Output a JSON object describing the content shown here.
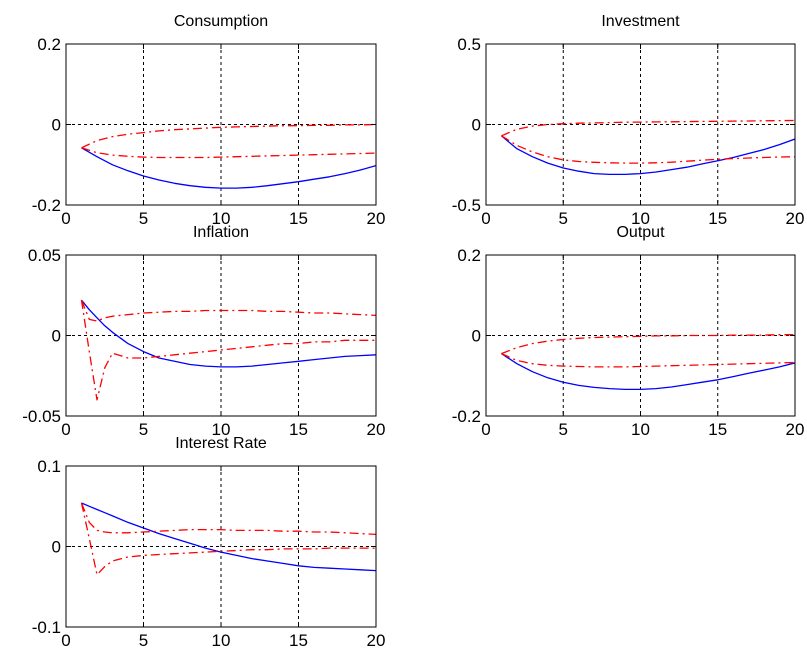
{
  "colors": {
    "background": "#ffffff",
    "axes": "#000000",
    "grid": "#000000",
    "response_line": "#0000ff",
    "band_lines": "#ff0000"
  },
  "chart_data": [
    {
      "type": "line",
      "title": "Consumption",
      "xlim": [
        0,
        20
      ],
      "ylim": [
        -0.2,
        0.2
      ],
      "xticks": [
        0,
        5,
        10,
        15,
        20
      ],
      "yticks": [
        -0.2,
        0,
        0.2
      ],
      "xtick_labels": [
        "0",
        "5",
        "10",
        "15",
        "20"
      ],
      "ytick_labels": [
        "-0.2",
        "0",
        "0.2"
      ],
      "grid": true,
      "x": [
        1,
        2,
        3,
        4,
        5,
        6,
        7,
        8,
        9,
        10,
        11,
        12,
        13,
        14,
        15,
        16,
        17,
        18,
        19,
        20
      ],
      "series": [
        {
          "style": "solid",
          "color": "#0000ff",
          "values": [
            -0.058,
            -0.08,
            -0.1,
            -0.115,
            -0.128,
            -0.138,
            -0.146,
            -0.152,
            -0.156,
            -0.158,
            -0.158,
            -0.156,
            -0.152,
            -0.147,
            -0.142,
            -0.136,
            -0.13,
            -0.122,
            -0.113,
            -0.102
          ]
        },
        {
          "style": "dashdot",
          "color": "#ff0000",
          "values": [
            -0.058,
            -0.04,
            -0.03,
            -0.024,
            -0.02,
            -0.016,
            -0.013,
            -0.011,
            -0.009,
            -0.007,
            -0.006,
            -0.005,
            -0.004,
            -0.003,
            -0.003,
            -0.002,
            -0.002,
            -0.001,
            -0.001,
            0.0
          ]
        },
        {
          "style": "dashdot",
          "color": "#ff0000",
          "values": [
            -0.058,
            -0.07,
            -0.076,
            -0.079,
            -0.081,
            -0.082,
            -0.082,
            -0.082,
            -0.082,
            -0.081,
            -0.08,
            -0.079,
            -0.078,
            -0.077,
            -0.076,
            -0.075,
            -0.074,
            -0.073,
            -0.072,
            -0.071
          ]
        }
      ]
    },
    {
      "type": "line",
      "title": "Investment",
      "xlim": [
        0,
        20
      ],
      "ylim": [
        -0.5,
        0.5
      ],
      "xticks": [
        0,
        5,
        10,
        15,
        20
      ],
      "yticks": [
        -0.5,
        0,
        0.5
      ],
      "xtick_labels": [
        "0",
        "5",
        "10",
        "15",
        "20"
      ],
      "ytick_labels": [
        "-0.5",
        "0",
        "0.5"
      ],
      "grid": true,
      "x": [
        1,
        2,
        3,
        4,
        5,
        6,
        7,
        8,
        9,
        10,
        11,
        12,
        13,
        14,
        15,
        16,
        17,
        18,
        19,
        20
      ],
      "series": [
        {
          "style": "solid",
          "color": "#0000ff",
          "values": [
            -0.07,
            -0.15,
            -0.2,
            -0.24,
            -0.27,
            -0.29,
            -0.305,
            -0.31,
            -0.31,
            -0.305,
            -0.295,
            -0.28,
            -0.265,
            -0.245,
            -0.225,
            -0.205,
            -0.18,
            -0.155,
            -0.125,
            -0.09
          ]
        },
        {
          "style": "dashdot",
          "color": "#ff0000",
          "values": [
            -0.07,
            -0.03,
            -0.01,
            0.0,
            0.005,
            0.008,
            0.01,
            0.012,
            0.014,
            0.015,
            0.016,
            0.017,
            0.018,
            0.019,
            0.02,
            0.021,
            0.022,
            0.023,
            0.024,
            0.025
          ]
        },
        {
          "style": "dashdot",
          "color": "#ff0000",
          "values": [
            -0.07,
            -0.13,
            -0.17,
            -0.2,
            -0.22,
            -0.23,
            -0.235,
            -0.238,
            -0.24,
            -0.24,
            -0.238,
            -0.234,
            -0.228,
            -0.222,
            -0.216,
            -0.212,
            -0.208,
            -0.205,
            -0.202,
            -0.2
          ]
        }
      ]
    },
    {
      "type": "line",
      "title": "Inflation",
      "xlim": [
        0,
        20
      ],
      "ylim": [
        -0.05,
        0.05
      ],
      "xticks": [
        0,
        5,
        10,
        15,
        20
      ],
      "yticks": [
        -0.05,
        0,
        0.05
      ],
      "xtick_labels": [
        "0",
        "5",
        "10",
        "15",
        "20"
      ],
      "ytick_labels": [
        "-0.05",
        "0",
        "0.05"
      ],
      "grid": true,
      "x": [
        1,
        1.5,
        2,
        2.5,
        3,
        4,
        5,
        6,
        7,
        8,
        9,
        10,
        11,
        12,
        13,
        14,
        15,
        16,
        17,
        18,
        19,
        20
      ],
      "series": [
        {
          "style": "solid",
          "color": "#0000ff",
          "values": [
            0.022,
            0.016,
            0.011,
            0.006,
            0.002,
            -0.005,
            -0.01,
            -0.014,
            -0.016,
            -0.018,
            -0.019,
            -0.0195,
            -0.0195,
            -0.019,
            -0.018,
            -0.017,
            -0.016,
            -0.015,
            -0.014,
            -0.013,
            -0.0125,
            -0.012
          ]
        },
        {
          "style": "dashdot",
          "color": "#ff0000",
          "values": [
            0.022,
            -0.01,
            -0.04,
            -0.02,
            -0.011,
            -0.014,
            -0.014,
            -0.013,
            -0.012,
            -0.011,
            -0.01,
            -0.009,
            -0.008,
            -0.007,
            -0.006,
            -0.005,
            -0.005,
            -0.004,
            -0.004,
            -0.003,
            -0.003,
            -0.003
          ]
        },
        {
          "style": "dashdot",
          "color": "#ff0000",
          "values": [
            0.022,
            0.01,
            0.009,
            0.011,
            0.012,
            0.013,
            0.014,
            0.0145,
            0.015,
            0.015,
            0.0155,
            0.0155,
            0.0155,
            0.0155,
            0.015,
            0.015,
            0.0145,
            0.014,
            0.014,
            0.0135,
            0.013,
            0.0125
          ]
        }
      ]
    },
    {
      "type": "line",
      "title": "Output",
      "xlim": [
        0,
        20
      ],
      "ylim": [
        -0.2,
        0.2
      ],
      "xticks": [
        0,
        5,
        10,
        15,
        20
      ],
      "yticks": [
        -0.2,
        0,
        0.2
      ],
      "xtick_labels": [
        "0",
        "5",
        "10",
        "15",
        "20"
      ],
      "ytick_labels": [
        "-0.2",
        "0",
        "0.2"
      ],
      "grid": true,
      "x": [
        1,
        2,
        3,
        4,
        5,
        6,
        7,
        8,
        9,
        10,
        11,
        12,
        13,
        14,
        15,
        16,
        17,
        18,
        19,
        20
      ],
      "series": [
        {
          "style": "solid",
          "color": "#0000ff",
          "values": [
            -0.045,
            -0.07,
            -0.09,
            -0.105,
            -0.116,
            -0.124,
            -0.129,
            -0.132,
            -0.134,
            -0.134,
            -0.132,
            -0.128,
            -0.122,
            -0.116,
            -0.11,
            -0.102,
            -0.094,
            -0.086,
            -0.078,
            -0.068
          ]
        },
        {
          "style": "dashdot",
          "color": "#ff0000",
          "values": [
            -0.045,
            -0.03,
            -0.02,
            -0.014,
            -0.01,
            -0.007,
            -0.005,
            -0.004,
            -0.003,
            -0.002,
            -0.001,
            -0.001,
            0.0,
            0.0,
            0.0,
            0.001,
            0.001,
            0.001,
            0.002,
            0.002
          ]
        },
        {
          "style": "dashdot",
          "color": "#ff0000",
          "values": [
            -0.045,
            -0.062,
            -0.07,
            -0.074,
            -0.076,
            -0.077,
            -0.078,
            -0.078,
            -0.078,
            -0.077,
            -0.076,
            -0.075,
            -0.074,
            -0.073,
            -0.072,
            -0.071,
            -0.07,
            -0.069,
            -0.068,
            -0.067
          ]
        }
      ]
    },
    {
      "type": "line",
      "title": "Interest Rate",
      "xlim": [
        0,
        20
      ],
      "ylim": [
        -0.1,
        0.1
      ],
      "xticks": [
        0,
        5,
        10,
        15,
        20
      ],
      "yticks": [
        -0.1,
        0,
        0.1
      ],
      "xtick_labels": [
        "0",
        "5",
        "10",
        "15",
        "20"
      ],
      "ytick_labels": [
        "-0.1",
        "0",
        "0.1"
      ],
      "grid": true,
      "x": [
        1,
        1.5,
        2,
        2.5,
        3,
        4,
        5,
        6,
        7,
        8,
        9,
        10,
        11,
        12,
        13,
        14,
        15,
        16,
        17,
        18,
        19,
        20
      ],
      "series": [
        {
          "style": "solid",
          "color": "#0000ff",
          "values": [
            0.054,
            0.05,
            0.046,
            0.042,
            0.038,
            0.03,
            0.023,
            0.016,
            0.01,
            0.004,
            -0.002,
            -0.007,
            -0.011,
            -0.015,
            -0.018,
            -0.021,
            -0.024,
            -0.026,
            -0.027,
            -0.028,
            -0.029,
            -0.03
          ]
        },
        {
          "style": "dashdot",
          "color": "#ff0000",
          "values": [
            0.054,
            0.01,
            -0.035,
            -0.025,
            -0.018,
            -0.013,
            -0.011,
            -0.01,
            -0.009,
            -0.008,
            -0.007,
            -0.006,
            -0.005,
            -0.004,
            -0.004,
            -0.003,
            -0.003,
            -0.003,
            -0.002,
            -0.002,
            -0.002,
            -0.002
          ]
        },
        {
          "style": "dashdot",
          "color": "#ff0000",
          "values": [
            0.054,
            0.03,
            0.02,
            0.018,
            0.017,
            0.017,
            0.018,
            0.019,
            0.02,
            0.021,
            0.021,
            0.021,
            0.02,
            0.02,
            0.02,
            0.019,
            0.019,
            0.018,
            0.018,
            0.017,
            0.016,
            0.015
          ]
        }
      ]
    }
  ]
}
